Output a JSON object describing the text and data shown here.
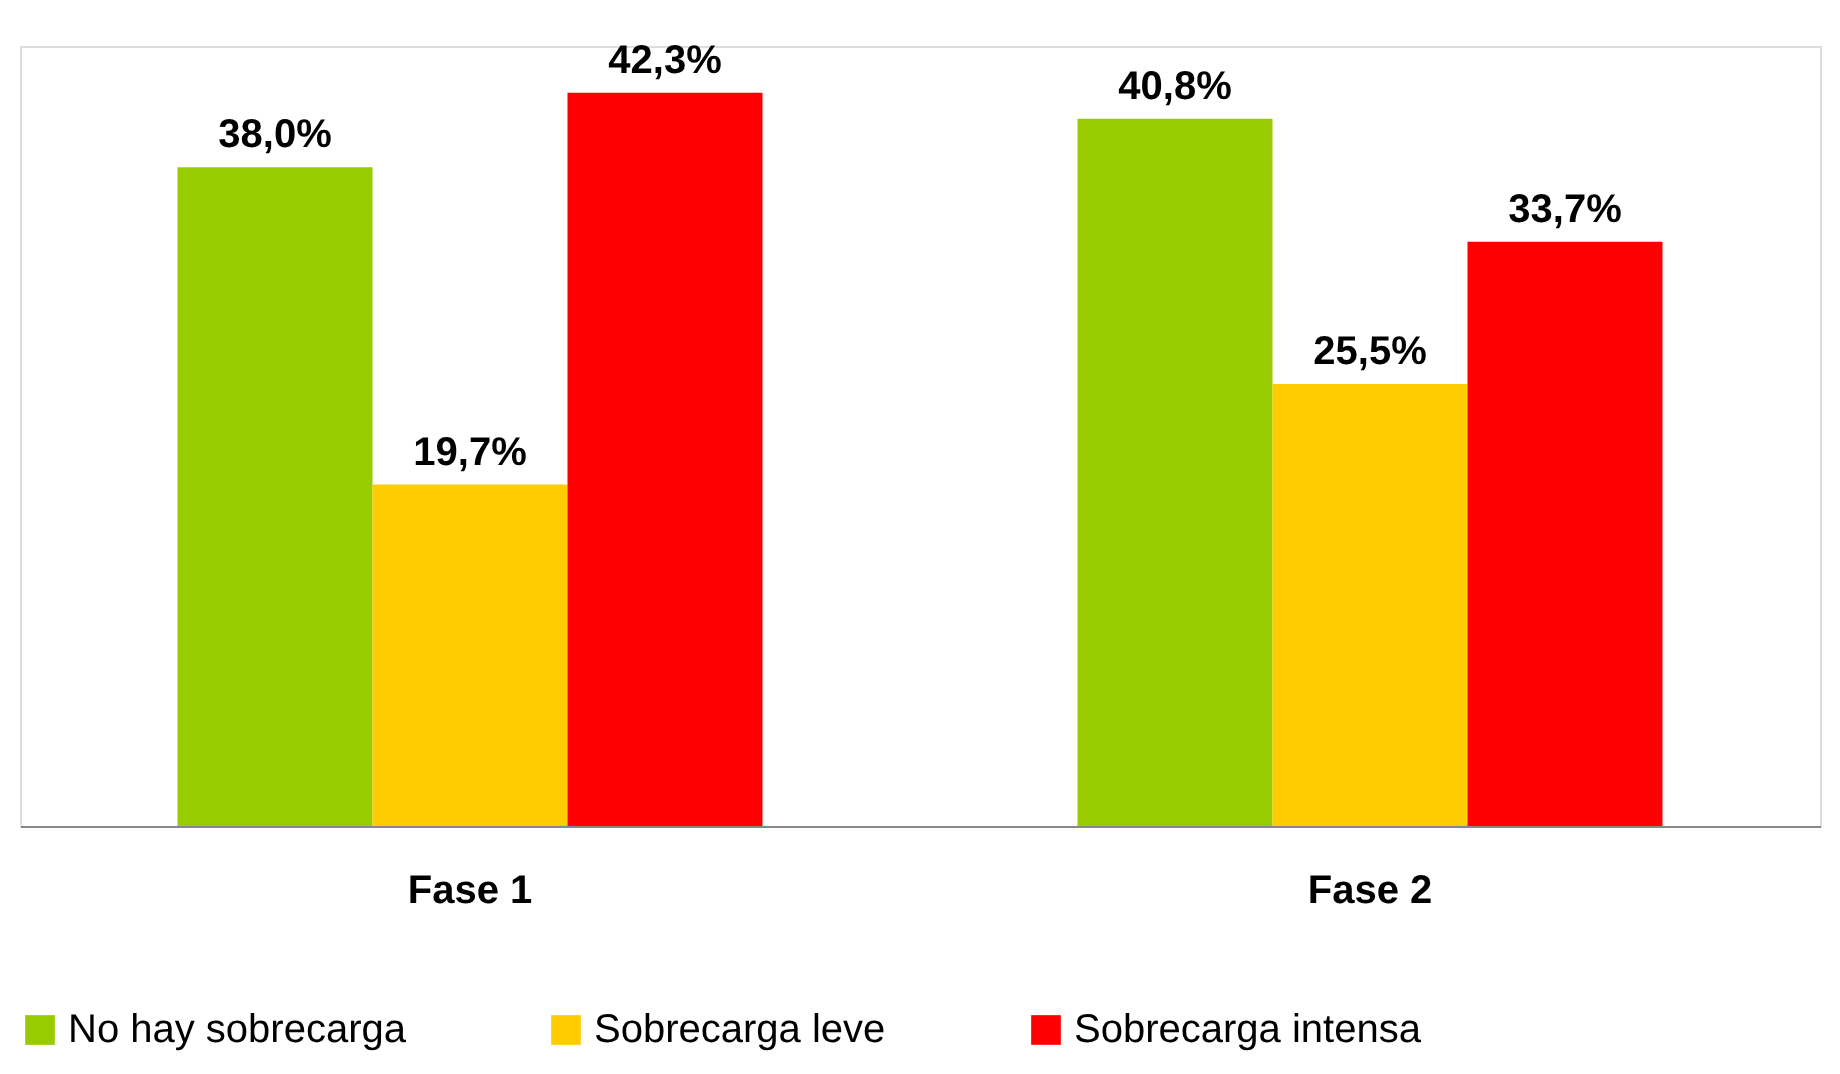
{
  "chart_data": {
    "type": "bar",
    "categories": [
      "Fase 1",
      "Fase 2"
    ],
    "series": [
      {
        "name": "No hay sobrecarga",
        "color": "#99cc00",
        "values": [
          38.0,
          40.8
        ],
        "value_labels": [
          "38,0%",
          "40,8%"
        ]
      },
      {
        "name": "Sobrecarga leve",
        "color": "#ffcc00",
        "values": [
          19.7,
          25.5
        ],
        "value_labels": [
          "19,7%",
          "25,5%"
        ]
      },
      {
        "name": "Sobrecarga intensa",
        "color": "#ff0000",
        "values": [
          42.3,
          33.7
        ],
        "value_labels": [
          "42,3%",
          "33,7%"
        ]
      }
    ],
    "legend": "bottom",
    "grid": false,
    "tick_labels": "x"
  }
}
